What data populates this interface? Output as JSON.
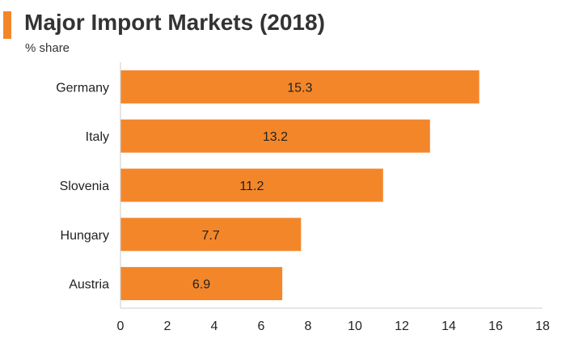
{
  "accent_color": "#f4862a",
  "axis_color": "#cccccc",
  "chart_data": {
    "type": "bar",
    "orientation": "horizontal",
    "title": "Major Import Markets (2018)",
    "subtitle": "% share",
    "categories": [
      "Germany",
      "Italy",
      "Slovenia",
      "Hungary",
      "Austria"
    ],
    "values": [
      15.3,
      13.2,
      11.2,
      7.7,
      6.9
    ],
    "data_labels": [
      "15.3",
      "13.2",
      "11.2",
      "7.7",
      "6.9"
    ],
    "xlim": [
      0,
      18
    ],
    "xticks": [
      0,
      2,
      4,
      6,
      8,
      10,
      12,
      14,
      16,
      18
    ],
    "bar_color": "#f4862a",
    "grid": false,
    "legend": false
  }
}
